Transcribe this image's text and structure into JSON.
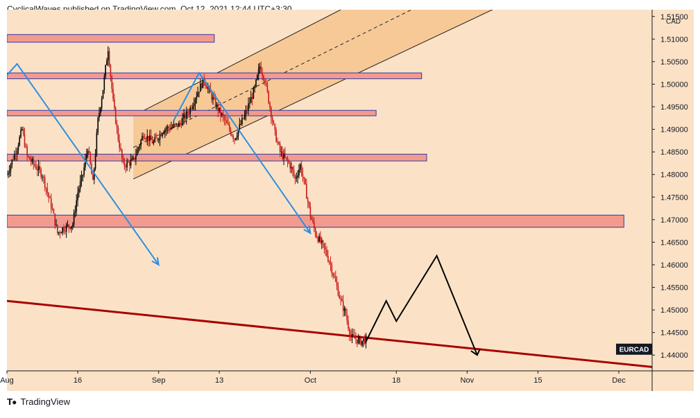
{
  "header": {
    "publish_line": "CyclicalWaves published on TradingView.com, Oct 12, 2021 12:44 UTC+3:30"
  },
  "footer": {
    "brand": "TradingView",
    "logo": "tradingview-logo-icon"
  },
  "colors": {
    "background": "#fbe2c6",
    "zone_fill": "#f39a8f",
    "zone_border": "#2a3aa0",
    "channel_fill": "#f6c48e",
    "arrow_blue": "#2f8fe0",
    "trendline": "#a80000",
    "projection": "#000000",
    "candle_up": "#000000",
    "candle_down": "#c81919"
  },
  "chart_data": {
    "type": "candlestick",
    "symbol": "EURCAD",
    "currency_label": "CAD",
    "x_tick_labels": [
      "Aug",
      "16",
      "Sep",
      "13",
      "Oct",
      "18",
      "Nov",
      "15",
      "Dec"
    ],
    "y_tick_labels": [
      "1.44000",
      "1.44500",
      "1.45000",
      "1.45500",
      "1.46000",
      "1.46500",
      "1.47000",
      "1.47500",
      "1.48000",
      "1.48500",
      "1.49000",
      "1.49500",
      "1.50000",
      "1.50500",
      "1.51000",
      "1.51500"
    ],
    "ylim": [
      1.4365,
      1.5165
    ],
    "price_path": [
      [
        "2021-08-02",
        1.48
      ],
      [
        "2021-08-04",
        1.486
      ],
      [
        "2021-08-05",
        1.49
      ],
      [
        "2021-08-06",
        1.484
      ],
      [
        "2021-08-09",
        1.48
      ],
      [
        "2021-08-10",
        1.476
      ],
      [
        "2021-08-11",
        1.472
      ],
      [
        "2021-08-12",
        1.467
      ],
      [
        "2021-08-13",
        1.468
      ],
      [
        "2021-08-15",
        1.469
      ],
      [
        "2021-08-16",
        1.476
      ],
      [
        "2021-08-17",
        1.48
      ],
      [
        "2021-08-18",
        1.486
      ],
      [
        "2021-08-19",
        1.478
      ],
      [
        "2021-08-20",
        1.492
      ],
      [
        "2021-08-21",
        1.499
      ],
      [
        "2021-08-22",
        1.508
      ],
      [
        "2021-08-23",
        1.496
      ],
      [
        "2021-08-24",
        1.488
      ],
      [
        "2021-08-25",
        1.482
      ],
      [
        "2021-08-27",
        1.483
      ],
      [
        "2021-08-29",
        1.489
      ],
      [
        "2021-08-31",
        1.487
      ],
      [
        "2021-09-02",
        1.49
      ],
      [
        "2021-09-05",
        1.491
      ],
      [
        "2021-09-07",
        1.494
      ],
      [
        "2021-09-09",
        1.499
      ],
      [
        "2021-09-10",
        1.501
      ],
      [
        "2021-09-12",
        1.496
      ],
      [
        "2021-09-14",
        1.492
      ],
      [
        "2021-09-16",
        1.488
      ],
      [
        "2021-09-18",
        1.493
      ],
      [
        "2021-09-20",
        1.499
      ],
      [
        "2021-09-21",
        1.504
      ],
      [
        "2021-09-22",
        1.501
      ],
      [
        "2021-09-23",
        1.495
      ],
      [
        "2021-09-24",
        1.489
      ],
      [
        "2021-09-25",
        1.485
      ],
      [
        "2021-09-27",
        1.482
      ],
      [
        "2021-09-28",
        1.479
      ],
      [
        "2021-09-29",
        1.482
      ],
      [
        "2021-09-30",
        1.477
      ],
      [
        "2021-10-01",
        1.471
      ],
      [
        "2021-10-02",
        1.467
      ],
      [
        "2021-10-04",
        1.463
      ],
      [
        "2021-10-05",
        1.46
      ],
      [
        "2021-10-06",
        1.456
      ],
      [
        "2021-10-07",
        1.452
      ],
      [
        "2021-10-08",
        1.449
      ],
      [
        "2021-10-09",
        1.444
      ],
      [
        "2021-10-11",
        1.443
      ],
      [
        "2021-10-12",
        1.4435
      ]
    ],
    "horizontal_zones": [
      {
        "from": 1.5093,
        "to": 1.511,
        "end": "2021-09-12"
      },
      {
        "from": 1.5012,
        "to": 1.5025,
        "end": "2021-10-23"
      },
      {
        "from": 1.493,
        "to": 1.4942,
        "end": "2021-10-14"
      },
      {
        "from": 1.483,
        "to": 1.4845,
        "end": "2021-10-24"
      },
      {
        "from": 1.4683,
        "to": 1.471,
        "end": "2021-12-02"
      }
    ],
    "channel": {
      "lower": [
        [
          "2021-08-27",
          1.479
        ],
        [
          "2021-11-06",
          1.5165
        ]
      ],
      "upper": [
        [
          "2021-08-27",
          1.493
        ],
        [
          "2021-10-07",
          1.5165
        ]
      ]
    },
    "trendline": [
      [
        "2021-08-02",
        1.452
      ],
      [
        "2021-12-09",
        1.4372
      ]
    ],
    "blue_arrows": [
      [
        [
          "2021-08-02",
          1.502
        ],
        [
          "2021-08-04",
          1.5045
        ],
        [
          "2021-09-01",
          1.46
        ]
      ],
      [
        [
          "2021-09-04",
          1.492
        ],
        [
          "2021-09-09",
          1.5025
        ],
        [
          "2021-10-01",
          1.467
        ]
      ]
    ],
    "projection_path": [
      [
        "2021-10-12",
        1.443
      ],
      [
        "2021-10-16",
        1.452
      ],
      [
        "2021-10-18",
        1.4475
      ],
      [
        "2021-10-26",
        1.462
      ],
      [
        "2021-11-03",
        1.44
      ],
      [
        "2021-11-04",
        1.442
      ]
    ]
  }
}
